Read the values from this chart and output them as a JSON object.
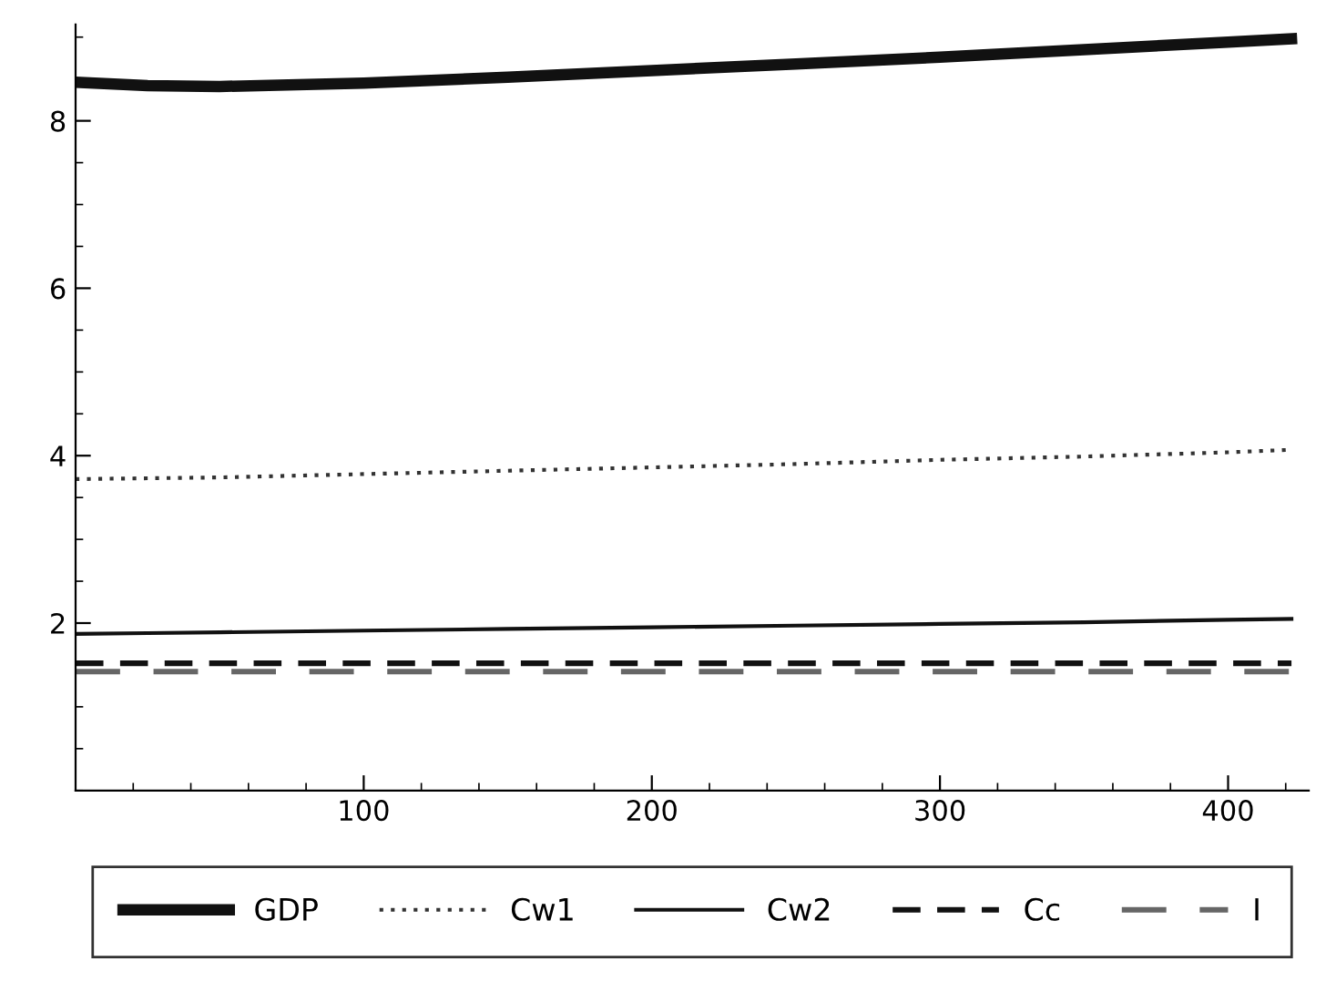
{
  "chart_data": {
    "type": "line",
    "x": [
      0,
      25,
      50,
      100,
      150,
      200,
      250,
      300,
      350,
      400,
      422
    ],
    "series": [
      {
        "name": "GDP",
        "color": "#111111",
        "line_style": "solid",
        "values": [
          8.46,
          8.42,
          8.41,
          8.45,
          8.52,
          8.6,
          8.68,
          8.76,
          8.85,
          8.94,
          8.98
        ]
      },
      {
        "name": "Cw1",
        "color": "#333333",
        "line_style": "dotted",
        "values": [
          3.72,
          3.73,
          3.74,
          3.78,
          3.82,
          3.86,
          3.9,
          3.95,
          3.99,
          4.04,
          4.07
        ]
      },
      {
        "name": "Cw2",
        "color": "#111111",
        "line_style": "solid",
        "values": [
          1.87,
          1.88,
          1.89,
          1.91,
          1.93,
          1.95,
          1.97,
          1.99,
          2.01,
          2.04,
          2.05
        ]
      },
      {
        "name": "Cc",
        "color": "#111111",
        "line_style": "dashed",
        "values": [
          1.52,
          1.52,
          1.52,
          1.52,
          1.52,
          1.52,
          1.52,
          1.52,
          1.52,
          1.52,
          1.52
        ]
      },
      {
        "name": "I",
        "color": "#666666",
        "line_style": "dashed",
        "values": [
          1.42,
          1.42,
          1.42,
          1.42,
          1.42,
          1.42,
          1.42,
          1.42,
          1.42,
          1.42,
          1.42
        ]
      }
    ],
    "xlim": [
      0,
      428
    ],
    "ylim": [
      0,
      9.15
    ],
    "xticks": [
      100,
      200,
      300,
      400
    ],
    "yticks": [
      2,
      4,
      6,
      8
    ],
    "grid": false,
    "legend": "bottom",
    "marker": "none"
  }
}
